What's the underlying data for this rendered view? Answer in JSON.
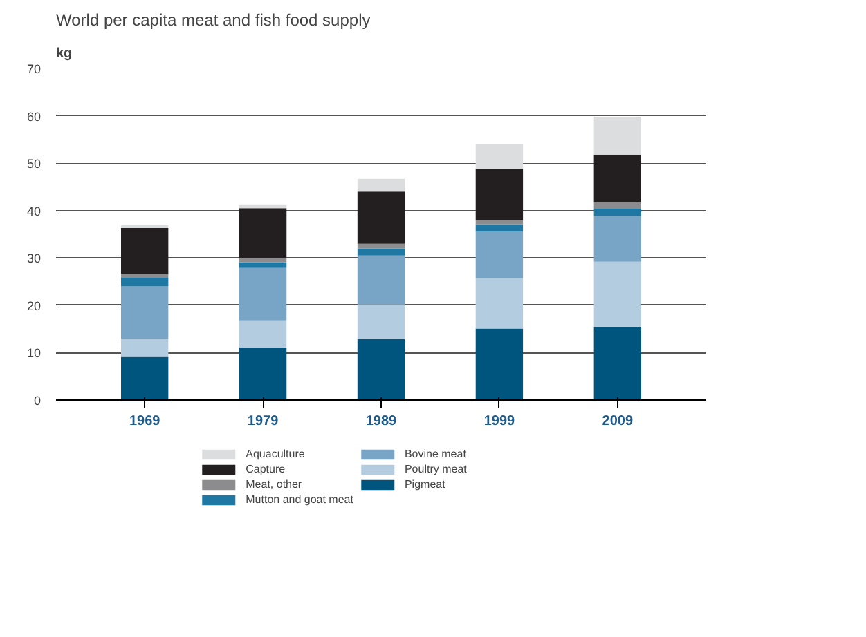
{
  "chart_data": {
    "type": "bar",
    "title": "World per capita meat and fish food supply",
    "ylabel": "kg",
    "categories": [
      "1969",
      "1979",
      "1989",
      "1999",
      "2009"
    ],
    "stacked": true,
    "ylim": [
      0,
      70
    ],
    "yticks": [
      0,
      10,
      20,
      30,
      40,
      50,
      60,
      70
    ],
    "grid": "y",
    "legend": "bottom",
    "series": [
      {
        "name": "Pigmeat",
        "color": "#00557f",
        "values": [
          9.1,
          11.1,
          12.9,
          15.1,
          15.5
        ]
      },
      {
        "name": "Poultry meat",
        "color": "#b4cce0",
        "values": [
          3.8,
          5.7,
          7.3,
          10.6,
          13.7
        ]
      },
      {
        "name": "Bovine meat",
        "color": "#78a5c6",
        "values": [
          11.1,
          11.1,
          10.3,
          9.9,
          9.7
        ]
      },
      {
        "name": "Mutton and goat meat",
        "color": "#1f78a4",
        "values": [
          1.8,
          1.2,
          1.5,
          1.5,
          1.5
        ]
      },
      {
        "name": "Meat, other",
        "color": "#8c8c8e",
        "values": [
          0.8,
          0.8,
          1.0,
          0.9,
          1.4
        ]
      },
      {
        "name": "Capture",
        "color": "#231f20",
        "values": [
          9.7,
          10.6,
          11.0,
          10.8,
          10.0
        ]
      },
      {
        "name": "Aquaculture",
        "color": "#dcdddf",
        "values": [
          0.6,
          0.8,
          2.7,
          5.3,
          8.0
        ]
      }
    ]
  }
}
